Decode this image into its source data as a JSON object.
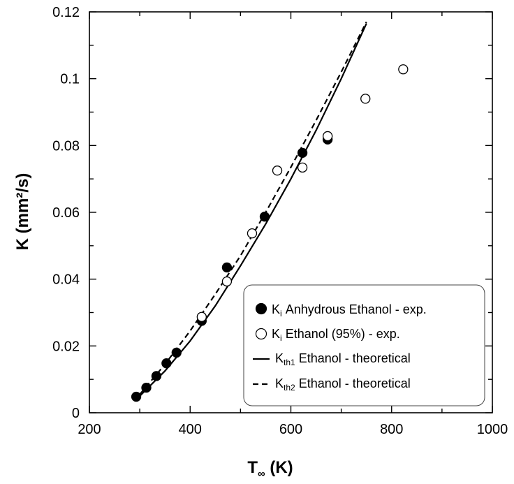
{
  "chart_data": {
    "type": "scatter",
    "xlabel": "T",
    "xlabel_sub": "∞",
    "xlabel_unit": " (K)",
    "ylabel": "K (mm²/s)",
    "xlim": [
      200,
      1000
    ],
    "ylim": [
      0,
      0.12
    ],
    "x_ticks": [
      200,
      400,
      600,
      800,
      1000
    ],
    "x_tick_labels": [
      "200",
      "400",
      "600",
      "800",
      "1000"
    ],
    "y_ticks": [
      0,
      0.02,
      0.04,
      0.06,
      0.08,
      0.1,
      0.12
    ],
    "y_tick_labels": [
      "0",
      "0.02",
      "0.04",
      "0.06",
      "0.08",
      "0.1",
      "0.12"
    ],
    "grid": false,
    "legend_position": "bottom-right",
    "series": [
      {
        "name": "Anhydrous Ethanol - exp.",
        "symbol": "K",
        "symbol_sub": "i",
        "kind": "scatter",
        "marker": "filled-circle",
        "x": [
          293,
          313,
          333,
          353,
          373,
          423,
          473,
          548,
          623,
          673
        ],
        "y": [
          0.0048,
          0.0075,
          0.011,
          0.0148,
          0.018,
          0.0275,
          0.0435,
          0.0587,
          0.0778,
          0.0818
        ]
      },
      {
        "name": "Ethanol (95%) - exp.",
        "symbol": "K",
        "symbol_sub": "i",
        "kind": "scatter",
        "marker": "open-circle",
        "x": [
          423,
          473,
          523,
          573,
          623,
          673,
          748,
          823
        ],
        "y": [
          0.0287,
          0.0393,
          0.0537,
          0.0725,
          0.0734,
          0.0828,
          0.094,
          0.1028
        ]
      },
      {
        "name": "Ethanol - theoretical",
        "symbol": "K",
        "symbol_sub": "th1",
        "kind": "line",
        "dash": "solid",
        "x": [
          300,
          350,
          400,
          450,
          500,
          550,
          600,
          650,
          700,
          750
        ],
        "y": [
          0.005,
          0.0125,
          0.0215,
          0.032,
          0.044,
          0.0565,
          0.07,
          0.0845,
          0.1,
          0.1165
        ]
      },
      {
        "name": "Ethanol - theoretical",
        "symbol": "K",
        "symbol_sub": "th2",
        "kind": "line",
        "dash": "dashed",
        "x": [
          300,
          350,
          400,
          450,
          500,
          550,
          600,
          650,
          700,
          750
        ],
        "y": [
          0.0055,
          0.0145,
          0.0245,
          0.0355,
          0.047,
          0.06,
          0.0735,
          0.0875,
          0.102,
          0.117
        ]
      }
    ]
  }
}
